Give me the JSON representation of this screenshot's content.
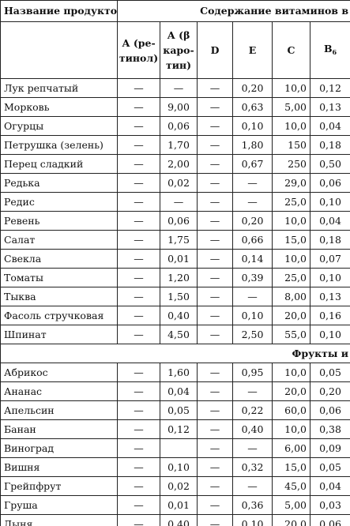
{
  "header": {
    "product_col": "Название продуктов",
    "vitamin_group": "Содержание витаминов в",
    "columns": [
      "А (ре-тинол)",
      "А (β каро-тин)",
      "D",
      "Е",
      "С",
      "В"
    ],
    "b6_sub": "6"
  },
  "vegetables": [
    {
      "name": "Лук репчатый",
      "a_ret": "—",
      "a_car": "—",
      "d": "—",
      "e": "0,20",
      "c": "10,0",
      "b6": "0,12"
    },
    {
      "name": "Морковь",
      "a_ret": "—",
      "a_car": "9,00",
      "d": "—",
      "e": "0,63",
      "c": "5,00",
      "b6": "0,13"
    },
    {
      "name": "Огурцы",
      "a_ret": "—",
      "a_car": "0,06",
      "d": "—",
      "e": "0,10",
      "c": "10,0",
      "b6": "0,04"
    },
    {
      "name": "Петрушка (зелень)",
      "a_ret": "—",
      "a_car": "1,70",
      "d": "—",
      "e": "1,80",
      "c": "150",
      "b6": "0,18"
    },
    {
      "name": "Перец сладкий",
      "a_ret": "—",
      "a_car": "2,00",
      "d": "—",
      "e": "0,67",
      "c": "250",
      "b6": "0,50"
    },
    {
      "name": "Редька",
      "a_ret": "—",
      "a_car": "0,02",
      "d": "—",
      "e": "—",
      "c": "29,0",
      "b6": "0,06"
    },
    {
      "name": "Редис",
      "a_ret": "—",
      "a_car": "—",
      "d": "—",
      "e": "—",
      "c": "25,0",
      "b6": "0,10"
    },
    {
      "name": "Ревень",
      "a_ret": "—",
      "a_car": "0,06",
      "d": "—",
      "e": "0,20",
      "c": "10,0",
      "b6": "0,04"
    },
    {
      "name": "Салат",
      "a_ret": "—",
      "a_car": "1,75",
      "d": "—",
      "e": "0,66",
      "c": "15,0",
      "b6": "0,18"
    },
    {
      "name": "Свекла",
      "a_ret": "—",
      "a_car": "0,01",
      "d": "—",
      "e": "0,14",
      "c": "10,0",
      "b6": "0,07"
    },
    {
      "name": "Томаты",
      "a_ret": "—",
      "a_car": "1,20",
      "d": "—",
      "e": "0,39",
      "c": "25,0",
      "b6": "0,10"
    },
    {
      "name": "Тыква",
      "a_ret": "—",
      "a_car": "1,50",
      "d": "—",
      "e": "—",
      "c": "8,00",
      "b6": "0,13"
    },
    {
      "name": "Фасоль стручковая",
      "a_ret": "—",
      "a_car": "0,40",
      "d": "—",
      "e": "0,10",
      "c": "20,0",
      "b6": "0,16"
    },
    {
      "name": "Шпинат",
      "a_ret": "—",
      "a_car": "4,50",
      "d": "—",
      "e": "2,50",
      "c": "55,0",
      "b6": "0,10"
    }
  ],
  "fruits_section": "Фрукты и",
  "fruits": [
    {
      "name": "Абрикос",
      "a_ret": "—",
      "a_car": "1,60",
      "d": "—",
      "e": "0,95",
      "c": "10,0",
      "b6": "0,05"
    },
    {
      "name": "Ананас",
      "a_ret": "—",
      "a_car": "0,04",
      "d": "—",
      "e": "—",
      "c": "20,0",
      "b6": "0,20"
    },
    {
      "name": "Апельсин",
      "a_ret": "—",
      "a_car": "0,05",
      "d": "—",
      "e": "0,22",
      "c": "60,0",
      "b6": "0,06"
    },
    {
      "name": "Банан",
      "a_ret": "—",
      "a_car": "0,12",
      "d": "—",
      "e": "0,40",
      "c": "10,0",
      "b6": "0,38"
    },
    {
      "name": "Виноград",
      "a_ret": "—",
      "a_car": "",
      "d": "—",
      "e": "—",
      "c": "6,00",
      "b6": "0,09"
    },
    {
      "name": "Вишня",
      "a_ret": "—",
      "a_car": "0,10",
      "d": "—",
      "e": "0,32",
      "c": "15,0",
      "b6": "0,05"
    },
    {
      "name": "Грейпфрут",
      "a_ret": "—",
      "a_car": "0,02",
      "d": "—",
      "e": "—",
      "c": "45,0",
      "b6": "0,04"
    },
    {
      "name": "Груша",
      "a_ret": "—",
      "a_car": "0,01",
      "d": "—",
      "e": "0,36",
      "c": "5,00",
      "b6": "0,03"
    },
    {
      "name": "Дыня",
      "a_ret": "—",
      "a_car": "0,40",
      "d": "—",
      "e": "0,10",
      "c": "20,0",
      "b6": "0,06"
    }
  ]
}
